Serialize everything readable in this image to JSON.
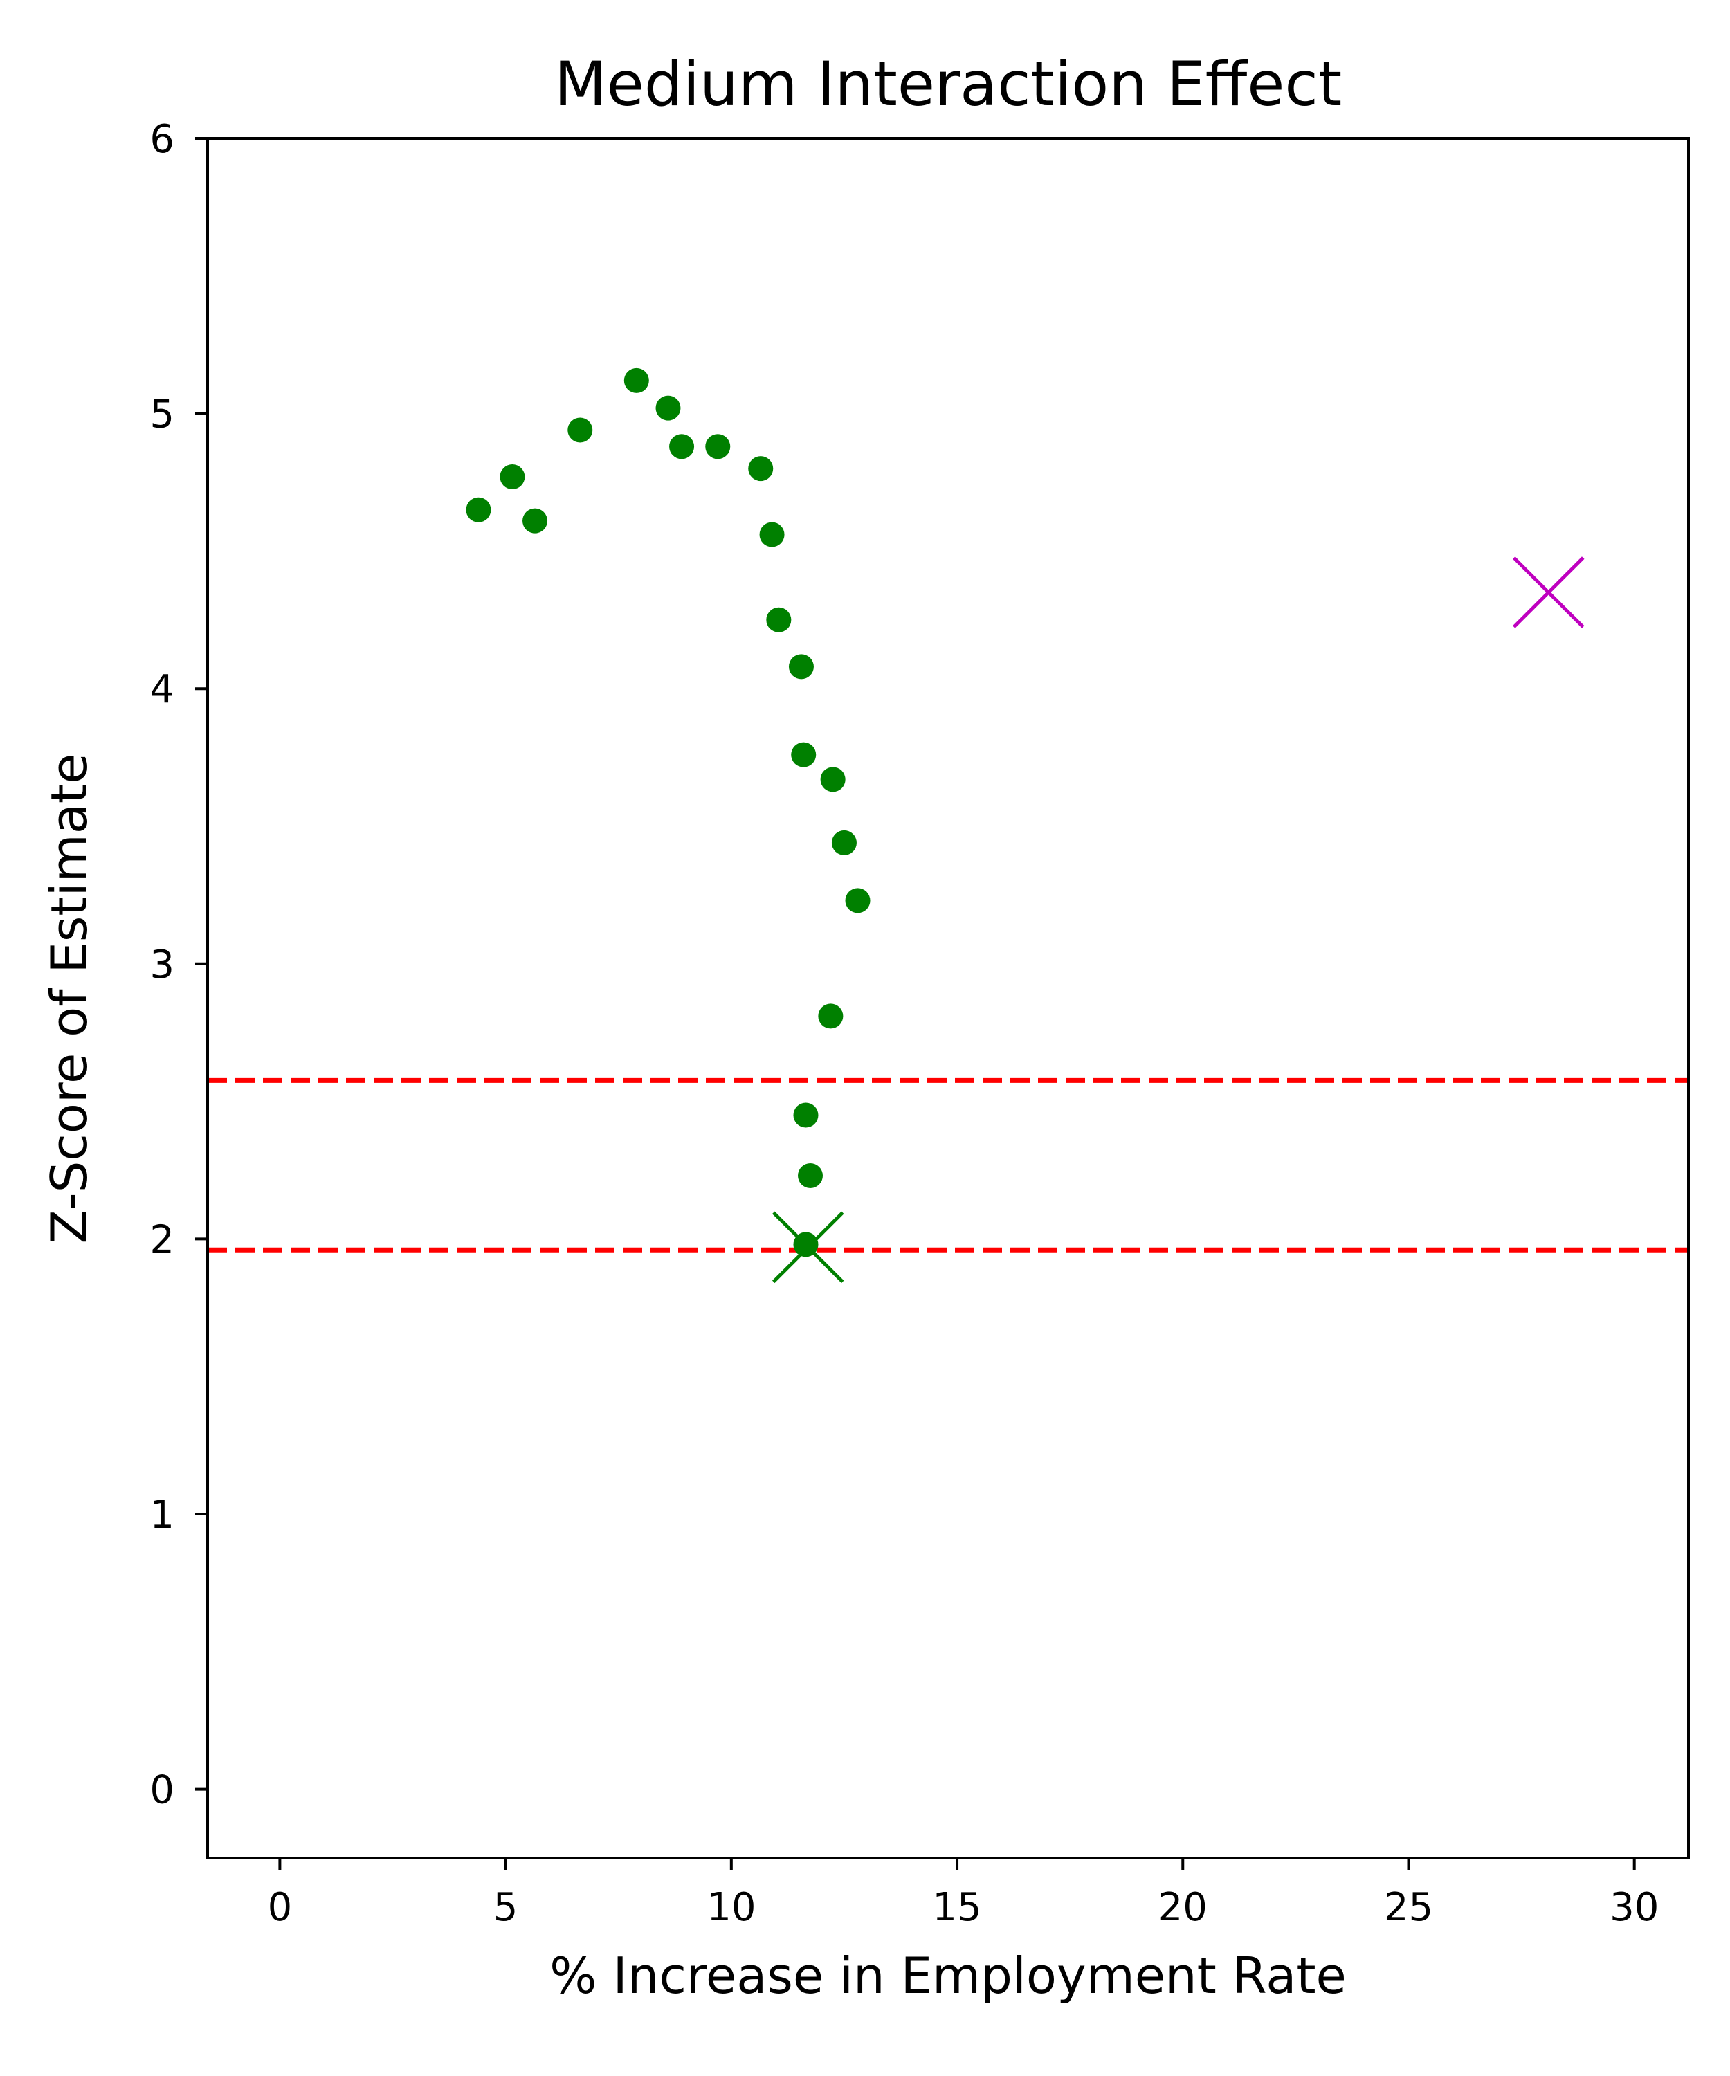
{
  "chart_data": {
    "type": "scatter",
    "title": "Medium Interaction Effect",
    "xlabel": "% Increase in Employment Rate",
    "ylabel": "Z-Score of Estimate",
    "xlim": [
      -1.6,
      31.2
    ],
    "ylim": [
      -0.25,
      6.0
    ],
    "xticks": [
      0,
      5,
      10,
      15,
      20,
      25,
      30
    ],
    "yticks": [
      0,
      1,
      2,
      3,
      4,
      5,
      6
    ],
    "grid": false,
    "legend": "none",
    "series": [
      {
        "marker": "circle",
        "color": "#008000",
        "points": [
          {
            "x": 4.4,
            "y": 4.65
          },
          {
            "x": 5.15,
            "y": 4.77
          },
          {
            "x": 5.65,
            "y": 4.61
          },
          {
            "x": 6.65,
            "y": 4.94
          },
          {
            "x": 7.9,
            "y": 5.12
          },
          {
            "x": 8.6,
            "y": 5.02
          },
          {
            "x": 8.9,
            "y": 4.88
          },
          {
            "x": 9.7,
            "y": 4.88
          },
          {
            "x": 10.65,
            "y": 4.8
          },
          {
            "x": 10.9,
            "y": 4.56
          },
          {
            "x": 11.05,
            "y": 4.25
          },
          {
            "x": 11.55,
            "y": 4.08
          },
          {
            "x": 11.6,
            "y": 3.76
          },
          {
            "x": 12.25,
            "y": 3.67
          },
          {
            "x": 12.5,
            "y": 3.44
          },
          {
            "x": 12.8,
            "y": 3.23
          },
          {
            "x": 12.2,
            "y": 2.81
          },
          {
            "x": 11.65,
            "y": 2.45
          },
          {
            "x": 11.75,
            "y": 2.23
          },
          {
            "x": 11.65,
            "y": 1.98
          }
        ]
      },
      {
        "marker": "x",
        "color": "#008000",
        "points": [
          {
            "x": 11.7,
            "y": 1.97
          }
        ]
      },
      {
        "marker": "x",
        "color": "#bf00bf",
        "points": [
          {
            "x": 28.1,
            "y": 4.35
          }
        ]
      }
    ],
    "reference_lines": [
      {
        "axis": "y",
        "value": 1.96,
        "color": "#ff0000",
        "style": "dashed"
      },
      {
        "axis": "y",
        "value": 2.576,
        "color": "#ff0000",
        "style": "dashed"
      }
    ]
  }
}
